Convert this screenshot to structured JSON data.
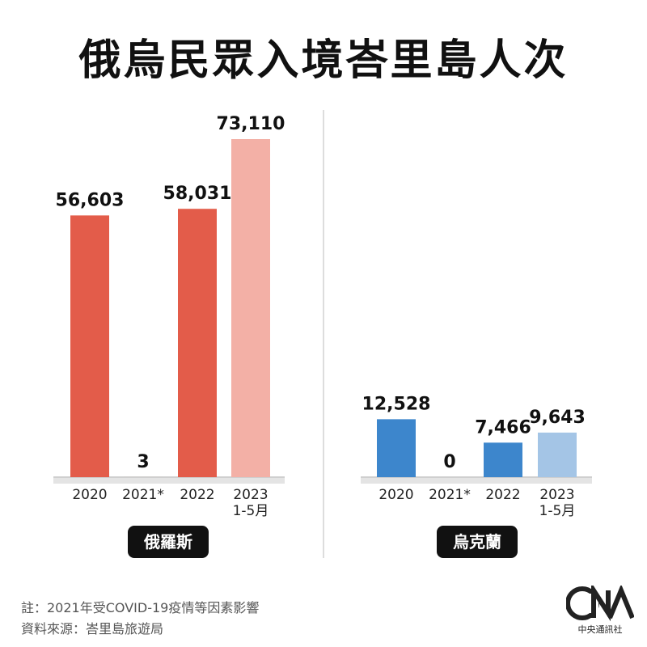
{
  "title": "俄烏民眾入境峇里島人次",
  "chart_data": [
    {
      "type": "bar",
      "name": "俄羅斯",
      "categories": [
        "2020",
        "2021*",
        "2022",
        "2023\n1-5月"
      ],
      "values": [
        56603,
        3,
        58031,
        73110
      ],
      "value_labels": [
        "56,603",
        "3",
        "58,031",
        "73,110"
      ],
      "colors": [
        "#e35c4a",
        "#e35c4a",
        "#e35c4a",
        "#f3b0a6"
      ],
      "ylim": [
        0,
        73110
      ]
    },
    {
      "type": "bar",
      "name": "烏克蘭",
      "categories": [
        "2020",
        "2021*",
        "2022",
        "2023\n1-5月"
      ],
      "values": [
        12528,
        0,
        7466,
        9643
      ],
      "value_labels": [
        "12,528",
        "0",
        "7,466",
        "9,643"
      ],
      "colors": [
        "#3d86cc",
        "#3d86cc",
        "#3d86cc",
        "#a4c5e6"
      ],
      "ylim": [
        0,
        73110
      ]
    }
  ],
  "notes": {
    "note1": "註：2021年受COVID-19疫情等因素影響",
    "source": "資料來源：峇里島旅遊局"
  },
  "logo": {
    "text": "中央通訊社",
    "icon": "cna-logo-icon"
  }
}
